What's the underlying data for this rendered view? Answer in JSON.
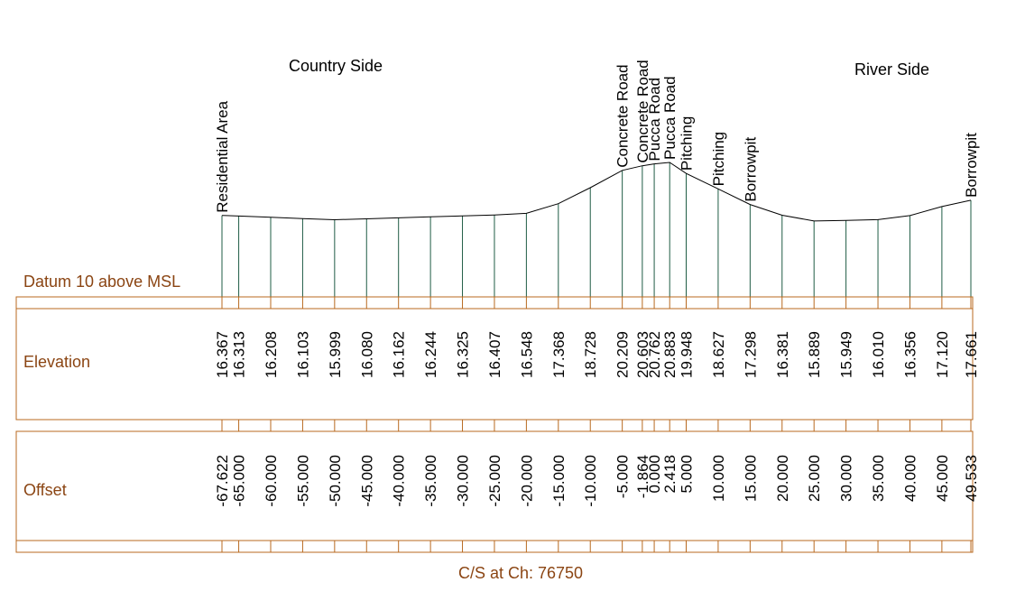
{
  "diagram": {
    "country_side_label": "Country Side",
    "river_side_label": "River Side",
    "datum_label": "Datum 10 above MSL",
    "elevation_row_label": "Elevation",
    "offset_row_label": "Offset",
    "footer": "C/S at Ch: 76750",
    "colors": {
      "band": "#B8691F",
      "station": "#1F5C45",
      "profile": "#000000",
      "label": "#8B4513"
    }
  },
  "chart_data": {
    "type": "cross-section",
    "datum": 10,
    "points": [
      {
        "offset": -67.622,
        "offset_label": "-67.622",
        "elev": 16.367,
        "elev_label": "16.367",
        "feature": "Residential Area"
      },
      {
        "offset": -65.0,
        "offset_label": "-65.000",
        "elev": 16.313,
        "elev_label": "16.313",
        "feature": ""
      },
      {
        "offset": -60.0,
        "offset_label": "-60.000",
        "elev": 16.208,
        "elev_label": "16.208",
        "feature": ""
      },
      {
        "offset": -55.0,
        "offset_label": "-55.000",
        "elev": 16.103,
        "elev_label": "16.103",
        "feature": ""
      },
      {
        "offset": -50.0,
        "offset_label": "-50.000",
        "elev": 15.999,
        "elev_label": "15.999",
        "feature": ""
      },
      {
        "offset": -45.0,
        "offset_label": "-45.000",
        "elev": 16.08,
        "elev_label": "16.080",
        "feature": ""
      },
      {
        "offset": -40.0,
        "offset_label": "-40.000",
        "elev": 16.162,
        "elev_label": "16.162",
        "feature": ""
      },
      {
        "offset": -35.0,
        "offset_label": "-35.000",
        "elev": 16.244,
        "elev_label": "16.244",
        "feature": ""
      },
      {
        "offset": -30.0,
        "offset_label": "-30.000",
        "elev": 16.325,
        "elev_label": "16.325",
        "feature": ""
      },
      {
        "offset": -25.0,
        "offset_label": "-25.000",
        "elev": 16.407,
        "elev_label": "16.407",
        "feature": ""
      },
      {
        "offset": -20.0,
        "offset_label": "-20.000",
        "elev": 16.548,
        "elev_label": "16.548",
        "feature": ""
      },
      {
        "offset": -15.0,
        "offset_label": "-15.000",
        "elev": 17.368,
        "elev_label": "17.368",
        "feature": ""
      },
      {
        "offset": -10.0,
        "offset_label": "-10.000",
        "elev": 18.728,
        "elev_label": "18.728",
        "feature": ""
      },
      {
        "offset": -5.0,
        "offset_label": "-5.000",
        "elev": 20.209,
        "elev_label": "20.209",
        "feature": "Concrete Road"
      },
      {
        "offset": -1.864,
        "offset_label": "-1.864",
        "elev": 20.603,
        "elev_label": "20.603",
        "feature": "Concrete Road"
      },
      {
        "offset": 0.0,
        "offset_label": "0.000",
        "elev": 20.762,
        "elev_label": "20.762",
        "feature": "Pucca Road"
      },
      {
        "offset": 2.418,
        "offset_label": "2.418",
        "elev": 20.883,
        "elev_label": "20.883",
        "feature": "Pucca Road"
      },
      {
        "offset": 5.0,
        "offset_label": "5.000",
        "elev": 19.948,
        "elev_label": "19.948",
        "feature": "Pitching"
      },
      {
        "offset": 10.0,
        "offset_label": "10.000",
        "elev": 18.627,
        "elev_label": "18.627",
        "feature": "Pitching"
      },
      {
        "offset": 15.0,
        "offset_label": "15.000",
        "elev": 17.298,
        "elev_label": "17.298",
        "feature": "Borrowpit"
      },
      {
        "offset": 20.0,
        "offset_label": "20.000",
        "elev": 16.381,
        "elev_label": "16.381",
        "feature": ""
      },
      {
        "offset": 25.0,
        "offset_label": "25.000",
        "elev": 15.889,
        "elev_label": "15.889",
        "feature": ""
      },
      {
        "offset": 30.0,
        "offset_label": "30.000",
        "elev": 15.949,
        "elev_label": "15.949",
        "feature": ""
      },
      {
        "offset": 35.0,
        "offset_label": "35.000",
        "elev": 16.01,
        "elev_label": "16.010",
        "feature": ""
      },
      {
        "offset": 40.0,
        "offset_label": "40.000",
        "elev": 16.356,
        "elev_label": "16.356",
        "feature": ""
      },
      {
        "offset": 45.0,
        "offset_label": "45.000",
        "elev": 17.12,
        "elev_label": "17.120",
        "feature": ""
      },
      {
        "offset": 49.533,
        "offset_label": "49.533",
        "elev": 17.661,
        "elev_label": "17.661",
        "feature": "Borrowpit"
      }
    ]
  }
}
